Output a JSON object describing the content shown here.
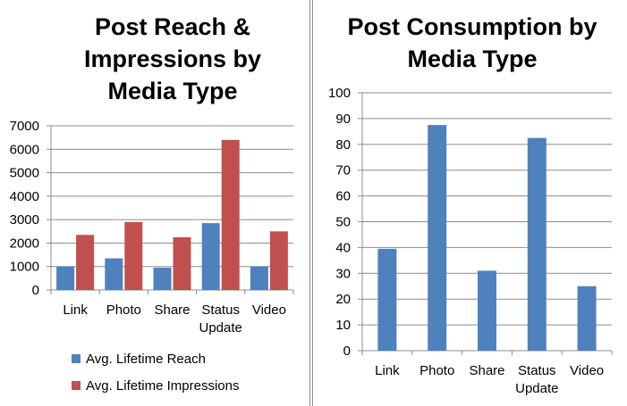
{
  "chart_data": [
    {
      "type": "bar",
      "title_lines": [
        "Post Reach &",
        "Impressions by",
        "Media Type"
      ],
      "categories": [
        "Link",
        "Photo",
        "Share",
        "Status Update",
        "Video"
      ],
      "category_lines": [
        [
          "Link"
        ],
        [
          "Photo"
        ],
        [
          "Share"
        ],
        [
          "Status",
          "Update"
        ],
        [
          "Video"
        ]
      ],
      "y_ticks": [
        "0",
        "1000",
        "2000",
        "3000",
        "4000",
        "5000",
        "6000",
        "7000"
      ],
      "ylim": [
        0,
        7000
      ],
      "grid": true,
      "legend_placement": "bottom",
      "series": [
        {
          "name": "Avg. Lifetime Reach",
          "color": "#4f81bd",
          "values": [
            1000,
            1350,
            950,
            2850,
            1000
          ]
        },
        {
          "name": "Avg. Lifetime Impressions",
          "color": "#c0504d",
          "values": [
            2350,
            2900,
            2250,
            6400,
            2500
          ]
        }
      ]
    },
    {
      "type": "bar",
      "title_lines": [
        "Post Consumption  by",
        "Media Type"
      ],
      "categories": [
        "Link",
        "Photo",
        "Share",
        "Status Update",
        "Video"
      ],
      "category_lines": [
        [
          "Link"
        ],
        [
          "Photo"
        ],
        [
          "Share"
        ],
        [
          "Status",
          "Update"
        ],
        [
          "Video"
        ]
      ],
      "y_ticks": [
        "0",
        "10",
        "20",
        "30",
        "40",
        "50",
        "60",
        "70",
        "80",
        "90",
        "100"
      ],
      "ylim": [
        0,
        100
      ],
      "grid": true,
      "series": [
        {
          "color": "#4f81bd",
          "values": [
            39.5,
            87.5,
            31,
            82.5,
            25
          ]
        }
      ]
    }
  ]
}
